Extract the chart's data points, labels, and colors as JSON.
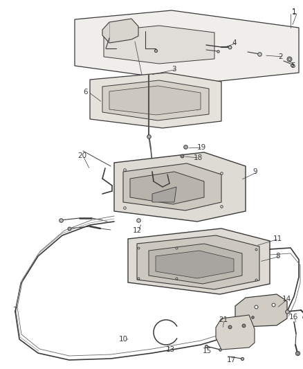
{
  "background_color": "#ffffff",
  "line_color": "#3a3a3a",
  "label_color": "#3a3a3a",
  "fig_width": 4.38,
  "fig_height": 5.33,
  "dpi": 100,
  "lw": 0.9
}
